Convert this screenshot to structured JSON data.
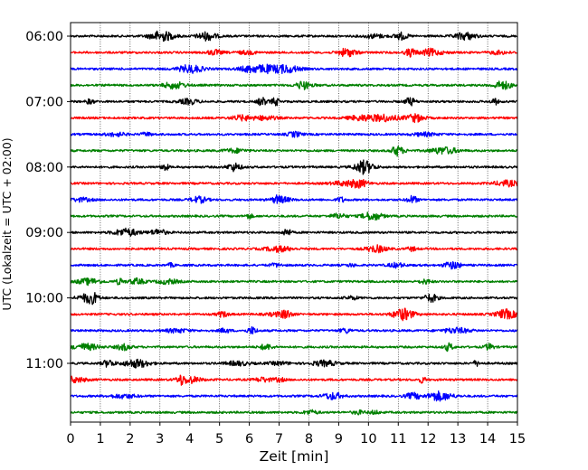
{
  "chart_data": {
    "type": "line",
    "title": "",
    "xlabel": "Zeit  [min]",
    "ylabel": "UTC (Lokalzeit = UTC + 02:00)",
    "xlim": [
      0,
      15
    ],
    "x_ticks": [
      "0",
      "1",
      "2",
      "3",
      "4",
      "5",
      "6",
      "7",
      "8",
      "9",
      "10",
      "11",
      "12",
      "13",
      "14",
      "15"
    ],
    "y_tick_labels": [
      "06:00",
      "07:00",
      "08:00",
      "09:00",
      "10:00",
      "11:00"
    ],
    "grid": "vertical dotted",
    "trace_start": "06:00",
    "trace_interval_minutes": 15,
    "trace_count": 24,
    "trace_colors": [
      "#000000",
      "#ff0000",
      "#0000ff",
      "#008000"
    ],
    "traces": [
      {
        "time": "06:00",
        "color": "#000000"
      },
      {
        "time": "06:15",
        "color": "#ff0000"
      },
      {
        "time": "06:30",
        "color": "#0000ff"
      },
      {
        "time": "06:45",
        "color": "#008000"
      },
      {
        "time": "07:00",
        "color": "#000000"
      },
      {
        "time": "07:15",
        "color": "#ff0000"
      },
      {
        "time": "07:30",
        "color": "#0000ff"
      },
      {
        "time": "07:45",
        "color": "#008000"
      },
      {
        "time": "08:00",
        "color": "#000000"
      },
      {
        "time": "08:15",
        "color": "#ff0000"
      },
      {
        "time": "08:30",
        "color": "#0000ff"
      },
      {
        "time": "08:45",
        "color": "#008000"
      },
      {
        "time": "09:00",
        "color": "#000000"
      },
      {
        "time": "09:15",
        "color": "#ff0000"
      },
      {
        "time": "09:30",
        "color": "#0000ff"
      },
      {
        "time": "09:45",
        "color": "#008000"
      },
      {
        "time": "10:00",
        "color": "#000000"
      },
      {
        "time": "10:15",
        "color": "#ff0000"
      },
      {
        "time": "10:30",
        "color": "#0000ff"
      },
      {
        "time": "10:45",
        "color": "#008000"
      },
      {
        "time": "11:00",
        "color": "#000000"
      },
      {
        "time": "11:15",
        "color": "#ff0000"
      },
      {
        "time": "11:30",
        "color": "#0000ff"
      },
      {
        "time": "11:45",
        "color": "#008000"
      }
    ]
  }
}
